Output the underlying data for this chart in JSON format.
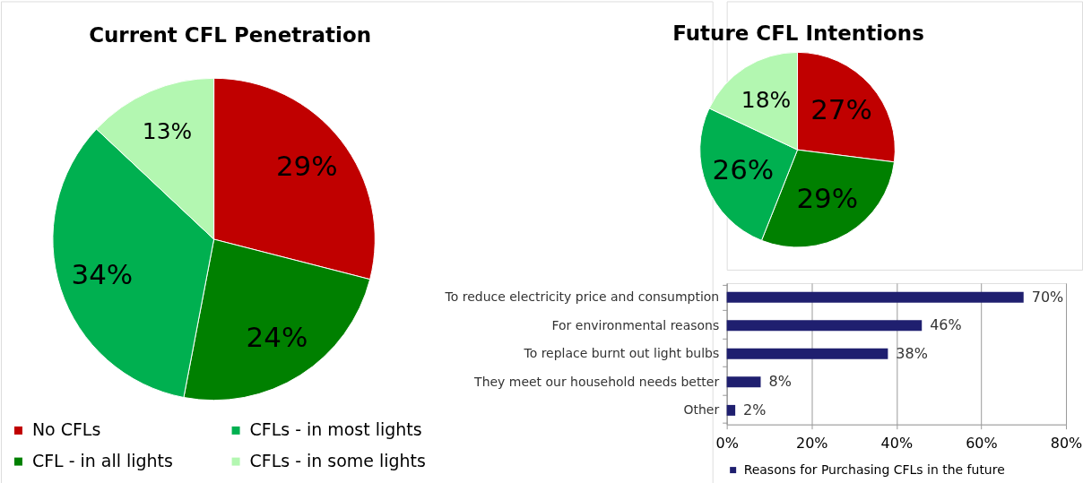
{
  "chart_data": [
    {
      "type": "pie",
      "title": "Current CFL Penetration",
      "categories": [
        "No CFLs",
        "CFL - in all lights",
        "CFLs - in most lights",
        "CFLs - in some lights"
      ],
      "values": [
        29,
        24,
        34,
        13
      ],
      "colors": [
        "#c00000",
        "#008000",
        "#00b050",
        "#b3f7b1"
      ],
      "value_labels": [
        "29%",
        "24%",
        "34%",
        "13%"
      ],
      "legend": "bottom"
    },
    {
      "type": "pie",
      "title": "Future CFL Intentions",
      "categories": [
        null,
        null,
        null,
        null
      ],
      "values": [
        27,
        29,
        26,
        18
      ],
      "colors": [
        "#c00000",
        "#008000",
        "#00b050",
        "#b3f7b1"
      ],
      "value_labels": [
        "27%",
        "29%",
        "26%",
        "18%"
      ]
    },
    {
      "type": "bar",
      "orientation": "horizontal",
      "categories": [
        "To reduce electricity price and consumption",
        "For environmental reasons",
        "To replace burnt out light bulbs",
        "They meet our household needs better",
        "Other"
      ],
      "series": [
        {
          "name": "Reasons for Purchasing CFLs in the future",
          "color": "#1f1f6f",
          "values": [
            70,
            46,
            38,
            8,
            2
          ],
          "value_labels": [
            "70%",
            "46%",
            "38%",
            "8%",
            "2%"
          ]
        }
      ],
      "xlim": [
        0,
        80
      ],
      "xticks": [
        {
          "value": 0,
          "label": "0%"
        },
        {
          "value": 20,
          "label": "20%"
        },
        {
          "value": 40,
          "label": "40%"
        },
        {
          "value": 60,
          "label": "60%"
        },
        {
          "value": 80,
          "label": "80%"
        }
      ],
      "grid": "x",
      "legend": "bottom"
    }
  ]
}
